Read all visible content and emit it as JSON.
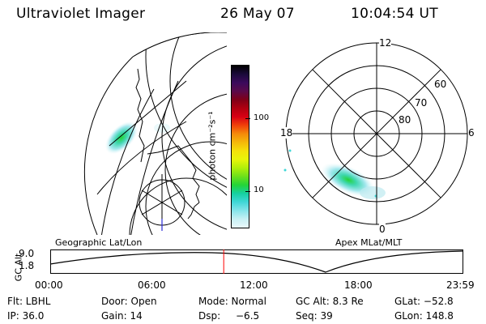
{
  "header": {
    "instrument": "Ultraviolet Imager",
    "date": "26 May 07",
    "time": "10:04:54 UT"
  },
  "colorbar": {
    "unit_label": "photon cm⁻²s⁻¹",
    "ticks": [
      "100",
      "10"
    ],
    "colors": [
      "#000000",
      "#1a0a3a",
      "#3b0a5c",
      "#5a0a4a",
      "#800018",
      "#b00010",
      "#d80014",
      "#f0400a",
      "#f58a0a",
      "#f5b80a",
      "#f5e10a",
      "#e8f50a",
      "#b0ef0a",
      "#6de01a",
      "#24d438",
      "#16d0a0",
      "#40d7d7",
      "#86e4ea",
      "#c7f0f4",
      "#e9f8fb"
    ]
  },
  "geo_panel": {
    "label": "Geographic Lat/Lon"
  },
  "polar_panel": {
    "label": "Apex MLat/MLT",
    "mlt_labels": {
      "top": "12",
      "left": "18",
      "right": "6",
      "bottom": "0"
    },
    "lat_labels": [
      "60",
      "70",
      "80"
    ]
  },
  "altitude_plot": {
    "axis_label": "GC Alt",
    "y_ticks": [
      "9.0",
      "1.8"
    ],
    "x_ticks": [
      "00:00",
      "06:00",
      "12:00",
      "18:00",
      "23:59"
    ],
    "current_time_fraction": 0.42,
    "marker_color": "#ff0000"
  },
  "footer": {
    "row1": {
      "flt": "Flt: LBHL",
      "door": "Door: Open",
      "mode": "Mode: Normal",
      "gcalt": "GC Alt: 8.3 Re",
      "glat": "GLat: −52.8"
    },
    "row2": {
      "ip": "IP: 36.0",
      "gain": "Gain: 14",
      "dsp_label": "Dsp:",
      "dsp_value": "−6.5",
      "seq": "Seq: 39",
      "glon": "GLon: 148.8"
    }
  }
}
